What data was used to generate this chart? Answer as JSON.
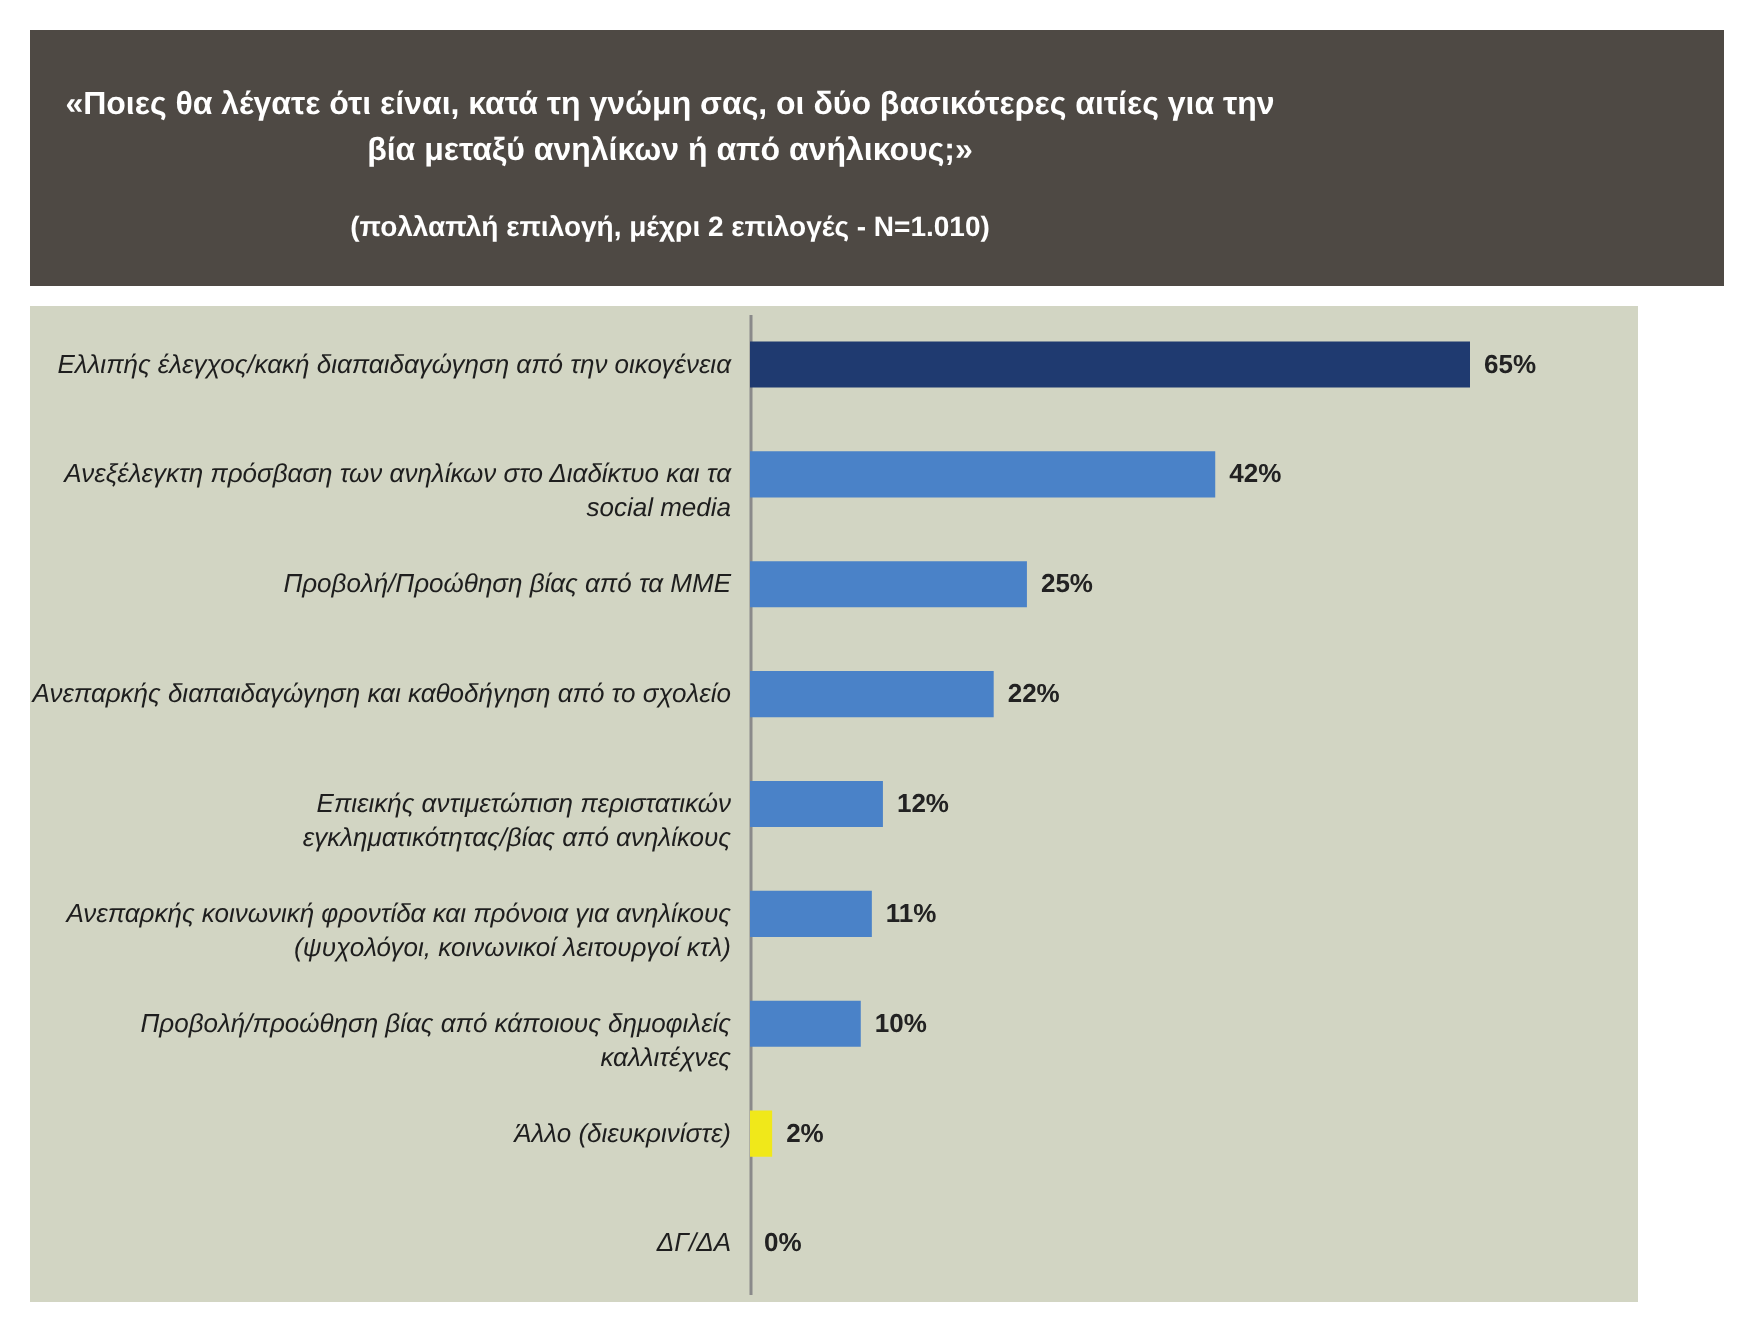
{
  "chart_data": {
    "type": "bar",
    "orientation": "horizontal",
    "title": "«Ποιες θα λέγατε ότι είναι, κατά τη γνώμη σας, οι δύο βασικότερες αιτίες για την βία μεταξύ ανηλίκων ή από ανήλικους;»",
    "subtitle": "(πολλαπλή επιλογή, μέχρι 2 επιλογές - N=1.010)",
    "categories": [
      "Ελλιπής έλεγχος/κακή διαπαιδαγώγηση από την οικογένεια",
      "Ανεξέλεγκτη πρόσβαση των ανηλίκων στο Διαδίκτυο και τα social media",
      "Προβολή/Προώθηση βίας από τα ΜΜΕ",
      "Ανεπαρκής διαπαιδαγώγηση και καθοδήγηση από το σχολείο",
      "Επιεικής αντιμετώπιση περιστατικών εγκληματικότητας/βίας από ανηλίκους",
      "Ανεπαρκής κοινωνική φροντίδα και πρόνοια για ανηλίκους (ψυχολόγοι, κοινωνικοί λειτουργοί κτλ)",
      "Προβολή/προώθηση βίας από κάποιους δημοφιλείς καλλιτέχνες",
      "Άλλο (διευκρινίστε)",
      "ΔΓ/ΔΑ"
    ],
    "values": [
      65,
      42,
      25,
      22,
      12,
      11,
      10,
      2,
      0
    ],
    "value_labels": [
      "65%",
      "42%",
      "25%",
      "22%",
      "12%",
      "11%",
      "10%",
      "2%",
      "0%"
    ],
    "colors": [
      "#1f3a70",
      "#4a82c8",
      "#4a82c8",
      "#4a82c8",
      "#4a82c8",
      "#4a82c8",
      "#4a82c8",
      "#f0e81a",
      "#7f7f7f"
    ],
    "tick_labels": "y"
  }
}
